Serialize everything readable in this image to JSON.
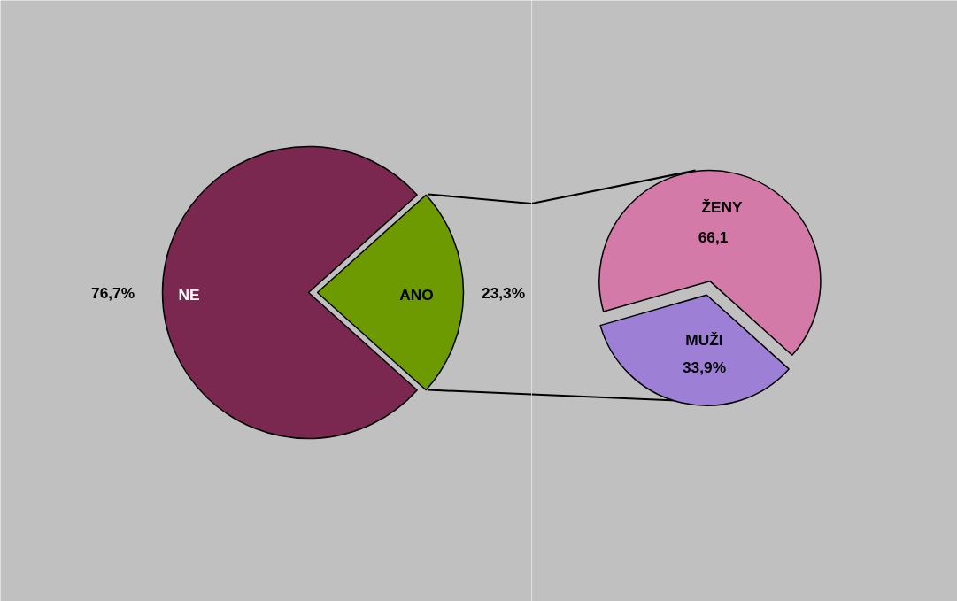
{
  "chart_data": [
    {
      "type": "pie",
      "categories": [
        "NE",
        "ANO"
      ],
      "values": [
        76.7,
        23.3
      ],
      "colors": [
        "#7a2850",
        "#6c9a00"
      ],
      "value_labels": [
        "76,7%",
        "23,3%"
      ]
    },
    {
      "type": "pie",
      "categories": [
        "ŽENY",
        "MUŽI"
      ],
      "values": [
        66.1,
        33.9
      ],
      "colors": [
        "#d47aa8",
        "#9d7fd6"
      ],
      "value_labels": [
        "66,1",
        "33,9%"
      ]
    }
  ]
}
